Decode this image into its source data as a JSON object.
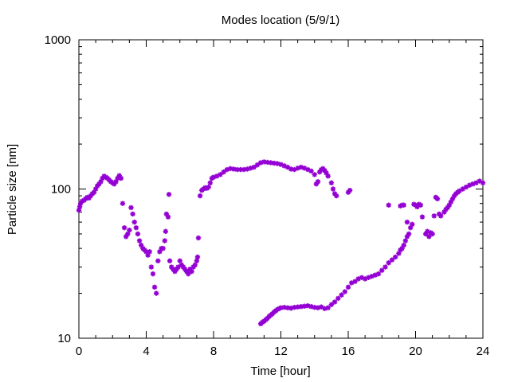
{
  "chart_data": {
    "type": "scatter",
    "title": "Modes location (5/9/1)",
    "xlabel": "Time [hour]",
    "ylabel": "Particle size [nm]",
    "xlim": [
      0,
      24
    ],
    "ylim": [
      10,
      1000
    ],
    "yscale": "log",
    "xticks": [
      0,
      4,
      8,
      12,
      16,
      20,
      24
    ],
    "xtick_labels": [
      "0",
      "4",
      "8",
      "12",
      "16",
      "20",
      "24"
    ],
    "yticks": [
      10,
      100,
      1000
    ],
    "ytick_labels": [
      "10",
      "100",
      "1000"
    ],
    "grid": false,
    "marker": "asterisk",
    "color": "#9400d3",
    "series": [
      {
        "points": [
          [
            0.0,
            72
          ],
          [
            0.05,
            76
          ],
          [
            0.1,
            80
          ],
          [
            0.2,
            83
          ],
          [
            0.3,
            84
          ],
          [
            0.4,
            86
          ],
          [
            0.5,
            88
          ],
          [
            0.6,
            87
          ],
          [
            0.7,
            90
          ],
          [
            0.8,
            93
          ],
          [
            0.9,
            95
          ],
          [
            1.0,
            100
          ],
          [
            1.1,
            105
          ],
          [
            1.2,
            108
          ],
          [
            1.3,
            112
          ],
          [
            1.4,
            118
          ],
          [
            1.5,
            122
          ],
          [
            1.6,
            120
          ],
          [
            1.7,
            118
          ],
          [
            1.8,
            115
          ],
          [
            1.9,
            112
          ],
          [
            2.0,
            110
          ],
          [
            2.1,
            108
          ],
          [
            2.2,
            112
          ],
          [
            2.3,
            118
          ],
          [
            2.4,
            123
          ],
          [
            2.5,
            118
          ],
          [
            2.6,
            80
          ],
          [
            2.7,
            55
          ],
          [
            2.8,
            48
          ],
          [
            2.9,
            50
          ],
          [
            3.0,
            53
          ],
          [
            3.1,
            75
          ],
          [
            3.2,
            68
          ],
          [
            3.3,
            60
          ],
          [
            3.4,
            55
          ],
          [
            3.5,
            50
          ],
          [
            3.6,
            45
          ],
          [
            3.7,
            42
          ],
          [
            3.8,
            40
          ],
          [
            3.9,
            39
          ],
          [
            4.0,
            38
          ],
          [
            4.1,
            36
          ],
          [
            4.2,
            38
          ],
          [
            4.3,
            30
          ],
          [
            4.4,
            27
          ],
          [
            4.5,
            22
          ],
          [
            4.6,
            20
          ],
          [
            4.7,
            33
          ],
          [
            4.8,
            38
          ],
          [
            4.9,
            40
          ],
          [
            5.0,
            40
          ],
          [
            5.1,
            45
          ],
          [
            5.15,
            52
          ],
          [
            5.2,
            68
          ],
          [
            5.3,
            65
          ],
          [
            5.35,
            92
          ],
          [
            5.4,
            33
          ],
          [
            5.5,
            30
          ],
          [
            5.6,
            29
          ],
          [
            5.7,
            28
          ],
          [
            5.8,
            29
          ],
          [
            5.9,
            30
          ],
          [
            6.0,
            33
          ],
          [
            6.1,
            31
          ],
          [
            6.2,
            30
          ],
          [
            6.3,
            29
          ],
          [
            6.4,
            28
          ],
          [
            6.5,
            27
          ],
          [
            6.6,
            29
          ],
          [
            6.7,
            28
          ],
          [
            6.8,
            30
          ],
          [
            6.9,
            31
          ],
          [
            7.0,
            33
          ],
          [
            7.05,
            35
          ],
          [
            7.1,
            47
          ],
          [
            7.2,
            90
          ],
          [
            7.3,
            98
          ],
          [
            7.4,
            100
          ],
          [
            7.5,
            102
          ],
          [
            7.6,
            101
          ],
          [
            7.7,
            103
          ],
          [
            7.8,
            110
          ],
          [
            7.9,
            118
          ],
          [
            8.0,
            120
          ],
          [
            8.2,
            122
          ],
          [
            8.4,
            125
          ],
          [
            8.6,
            130
          ],
          [
            8.8,
            135
          ],
          [
            9.0,
            137
          ],
          [
            9.2,
            136
          ],
          [
            9.4,
            135
          ],
          [
            9.6,
            135
          ],
          [
            9.8,
            135
          ],
          [
            10.0,
            136
          ],
          [
            10.2,
            138
          ],
          [
            10.4,
            140
          ],
          [
            10.6,
            145
          ],
          [
            10.8,
            150
          ],
          [
            11.0,
            152
          ],
          [
            11.2,
            151
          ],
          [
            11.4,
            150
          ],
          [
            11.6,
            149
          ],
          [
            11.8,
            148
          ],
          [
            12.0,
            146
          ],
          [
            12.2,
            143
          ],
          [
            12.4,
            140
          ],
          [
            12.6,
            136
          ],
          [
            12.8,
            135
          ],
          [
            13.0,
            138
          ],
          [
            13.2,
            140
          ],
          [
            13.4,
            138
          ],
          [
            13.6,
            135
          ],
          [
            13.8,
            132
          ],
          [
            14.0,
            125
          ],
          [
            14.1,
            108
          ],
          [
            14.2,
            112
          ],
          [
            14.3,
            130
          ],
          [
            14.4,
            135
          ],
          [
            14.5,
            137
          ],
          [
            14.6,
            133
          ],
          [
            14.7,
            128
          ],
          [
            14.8,
            122
          ],
          [
            15.0,
            110
          ],
          [
            15.1,
            100
          ],
          [
            15.2,
            93
          ],
          [
            15.3,
            90
          ],
          [
            16.0,
            95
          ],
          [
            16.1,
            98
          ],
          [
            18.4,
            78
          ],
          [
            19.1,
            77
          ],
          [
            19.2,
            78
          ],
          [
            19.3,
            78
          ],
          [
            19.5,
            60
          ],
          [
            19.9,
            79
          ],
          [
            20.0,
            78
          ],
          [
            20.1,
            76
          ],
          [
            20.2,
            79
          ],
          [
            20.3,
            78
          ],
          [
            20.4,
            65
          ],
          [
            20.6,
            50
          ],
          [
            20.7,
            52
          ],
          [
            20.8,
            48
          ],
          [
            20.9,
            51
          ],
          [
            21.0,
            50
          ],
          [
            21.1,
            66
          ],
          [
            21.2,
            88
          ],
          [
            21.3,
            86
          ],
          [
            21.4,
            68
          ],
          [
            21.5,
            66
          ],
          [
            21.7,
            70
          ],
          [
            21.8,
            73
          ],
          [
            21.9,
            75
          ],
          [
            22.0,
            78
          ],
          [
            22.1,
            82
          ],
          [
            22.2,
            86
          ],
          [
            22.3,
            90
          ],
          [
            22.4,
            93
          ],
          [
            22.5,
            95
          ],
          [
            22.6,
            97
          ],
          [
            22.8,
            100
          ],
          [
            23.0,
            103
          ],
          [
            23.2,
            106
          ],
          [
            23.4,
            108
          ],
          [
            23.6,
            110
          ],
          [
            23.8,
            113
          ],
          [
            24.0,
            110
          ]
        ]
      },
      {
        "points": [
          [
            10.8,
            12.5
          ],
          [
            10.9,
            12.8
          ],
          [
            11.0,
            13.0
          ],
          [
            11.1,
            13.3
          ],
          [
            11.2,
            13.6
          ],
          [
            11.3,
            14.0
          ],
          [
            11.4,
            14.3
          ],
          [
            11.5,
            14.6
          ],
          [
            11.6,
            15.0
          ],
          [
            11.7,
            15.3
          ],
          [
            11.8,
            15.6
          ],
          [
            11.9,
            15.8
          ],
          [
            12.0,
            16.0
          ],
          [
            12.2,
            16.1
          ],
          [
            12.4,
            16.0
          ],
          [
            12.6,
            15.9
          ],
          [
            12.8,
            16.1
          ],
          [
            13.0,
            16.2
          ],
          [
            13.2,
            16.3
          ],
          [
            13.4,
            16.4
          ],
          [
            13.6,
            16.5
          ],
          [
            13.8,
            16.3
          ],
          [
            14.0,
            16.1
          ],
          [
            14.2,
            16.0
          ],
          [
            14.4,
            16.2
          ],
          [
            14.6,
            15.8
          ],
          [
            14.8,
            16.0
          ],
          [
            15.0,
            16.8
          ],
          [
            15.2,
            17.5
          ],
          [
            15.4,
            18.5
          ],
          [
            15.6,
            19.5
          ],
          [
            15.8,
            20.5
          ],
          [
            16.0,
            22.0
          ],
          [
            16.2,
            23.5
          ],
          [
            16.4,
            24.0
          ],
          [
            16.6,
            25.0
          ],
          [
            16.8,
            25.5
          ],
          [
            17.0,
            25.0
          ],
          [
            17.2,
            25.5
          ],
          [
            17.4,
            26.0
          ],
          [
            17.6,
            26.5
          ],
          [
            17.8,
            27.0
          ],
          [
            18.0,
            28.5
          ],
          [
            18.2,
            30.0
          ],
          [
            18.4,
            32.0
          ],
          [
            18.6,
            33.5
          ],
          [
            18.8,
            35.0
          ],
          [
            19.0,
            37.0
          ],
          [
            19.1,
            39.0
          ],
          [
            19.2,
            40.0
          ],
          [
            19.3,
            42.0
          ],
          [
            19.4,
            45.0
          ],
          [
            19.5,
            48.0
          ],
          [
            19.6,
            50.0
          ],
          [
            19.7,
            55.0
          ],
          [
            19.8,
            58.0
          ]
        ]
      }
    ]
  }
}
